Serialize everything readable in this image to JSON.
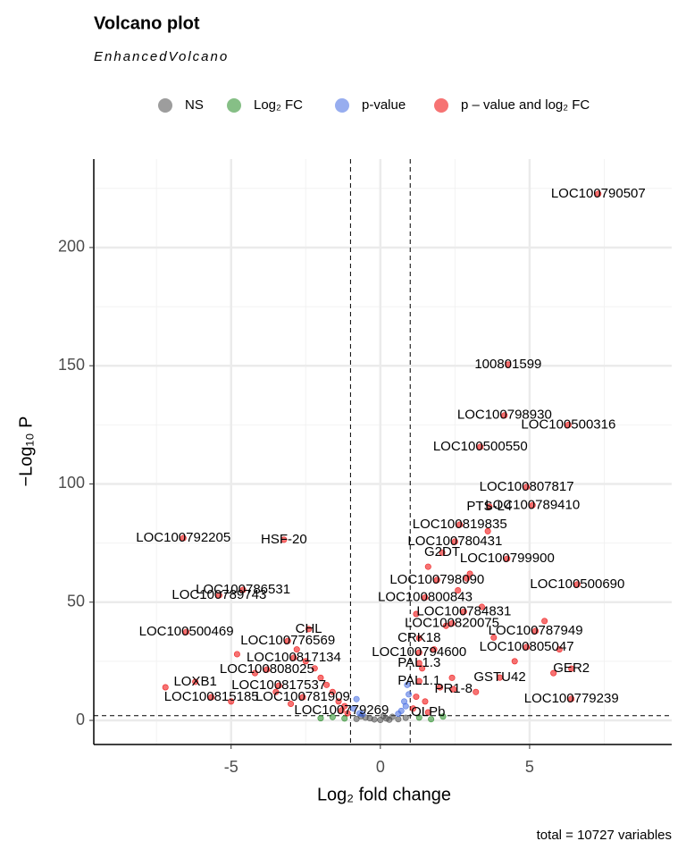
{
  "chart_data": {
    "type": "scatter",
    "title": "Volcano plot",
    "subtitle": "EnhancedVolcano",
    "caption": "total = 10727 variables",
    "x_label": "Log₂ fold change",
    "y_label": "−Log₁₀ P",
    "xlim": [
      -9.6,
      9.76
    ],
    "ylim": [
      -10.2,
      237.4
    ],
    "xticks": [
      -5,
      0,
      5
    ],
    "yticks": [
      0,
      50,
      100,
      150,
      200
    ],
    "xminor": [
      -7.5,
      -2.5,
      2.5,
      7.5
    ],
    "yminor": [
      25,
      75,
      125,
      175,
      225
    ],
    "vlines": [
      -1,
      1
    ],
    "hlines": [
      2
    ],
    "grid": true,
    "legend": "top",
    "series": [
      {
        "name": "NS",
        "color": "#4d4d4d",
        "x": [
          -0.8,
          -0.5,
          -0.2,
          0,
          0.2,
          0.4,
          0.6,
          0.85,
          -0.65,
          0.3,
          -0.35,
          0.1
        ],
        "values": [
          0.6,
          1.2,
          0.4,
          0.2,
          0.8,
          1.5,
          0.5,
          1.1,
          1.7,
          0.3,
          0.9,
          1.8
        ]
      },
      {
        "name": "Log₂ FC",
        "color": "#228b22",
        "x": [
          -1.2,
          -1.6,
          1.3,
          1.7,
          2.1,
          -2.0
        ],
        "values": [
          0.8,
          1.4,
          1.2,
          0.5,
          1.6,
          0.9
        ]
      },
      {
        "name": "p-value",
        "color": "#4169e1",
        "x": [
          0.9,
          0.8,
          0.7,
          0.95,
          -0.9,
          -0.8,
          -0.7,
          0.85,
          0.6,
          -0.6
        ],
        "values": [
          15,
          8,
          4,
          11,
          5,
          9,
          3,
          6,
          2.8,
          2.6
        ]
      },
      {
        "name": "p – value and log₂ FC",
        "color": "#ee0000",
        "x": [
          7.3,
          4.28,
          4.16,
          6.3,
          3.35,
          4.9,
          3.65,
          5.1,
          2.66,
          2.5,
          2.07,
          4.25,
          -6.6,
          -3.23,
          -4.6,
          -5.4,
          1.9,
          6.6,
          1.5,
          2.8,
          -6.5,
          2.4,
          5.2,
          -2.4,
          1.3,
          -3.1,
          1.3,
          4.9,
          -2.9,
          1.3,
          6.4,
          -3.8,
          4.0,
          1.3,
          -6.2,
          -3.4,
          2.45,
          -5.66,
          -2.6,
          6.4,
          -1.3,
          1.6,
          1.2,
          1.4,
          1.8,
          2.2,
          2.6,
          3.0,
          3.4,
          3.8,
          4.5,
          5.5,
          6.0,
          1.1,
          1.5,
          2.0,
          2.4,
          3.2,
          -1.1,
          -1.4,
          -1.8,
          -2.2,
          -2.8,
          -3.5,
          -4.2,
          -5.0,
          -1.2,
          -1.6,
          -2.0,
          -2.5,
          -3.0,
          1.2,
          1.6,
          2.9,
          3.6,
          5.8,
          -7.2,
          -4.8
        ],
        "values": [
          222.7,
          150.5,
          129,
          125,
          115.7,
          98.7,
          90.4,
          91,
          82.8,
          75.6,
          71,
          68.4,
          77.1,
          76.4,
          55.2,
          52.9,
          59.4,
          57.5,
          52,
          46,
          37.4,
          41,
          37.8,
          38.6,
          34.8,
          33.6,
          28.7,
          31,
          26.5,
          24.2,
          21.9,
          21.5,
          18.1,
          16.6,
          16.3,
          14.7,
          13.2,
          9.8,
          9.8,
          9.1,
          4.2,
          3.4,
          10,
          22,
          30,
          40,
          55,
          62,
          48,
          35,
          25,
          42,
          30,
          5,
          8,
          14,
          18,
          12,
          3,
          8,
          15,
          22,
          30,
          12,
          20,
          8,
          6,
          12,
          18,
          25,
          7,
          45,
          65,
          60,
          80,
          20,
          14,
          28
        ],
        "labels": [
          "LOC100790507",
          "100801599",
          "LOC100798930",
          "LOC100500316",
          "LOC100500550",
          "LOC100807817",
          "PTS-L4",
          "LOC100789410",
          "LOC100819835",
          "LOC100780431",
          "G2DT",
          "LOC100799900",
          "LOC100792205",
          "HSF-20",
          "LOC100786531",
          "LOC100789743",
          "LOC100798090",
          "LOC100500690",
          "LOC100800843",
          "LOC100784831",
          "LOC100500469",
          "LOC100820075",
          "LOC100787949",
          "CHL",
          "CRK18",
          "LOC100776569",
          "LOC100794600",
          "LOC100805047",
          "LOC100817134",
          "PAL1.3",
          "GER2",
          "LOC100808025",
          "GSTU42",
          "PAL1.1",
          "LOXB1",
          "LOC100817537",
          "PR1-8",
          "LOC100815185",
          "LOC100781909",
          "LOC100779239",
          "LOC100779269",
          "OLPb",
          null,
          null,
          null,
          null,
          null,
          null,
          null,
          null,
          null,
          null,
          null,
          null,
          null,
          null,
          null,
          null,
          null,
          null,
          null,
          null,
          null,
          null,
          null,
          null,
          null,
          null,
          null,
          null,
          null,
          null,
          null,
          null,
          null,
          null,
          null,
          null
        ]
      }
    ]
  }
}
